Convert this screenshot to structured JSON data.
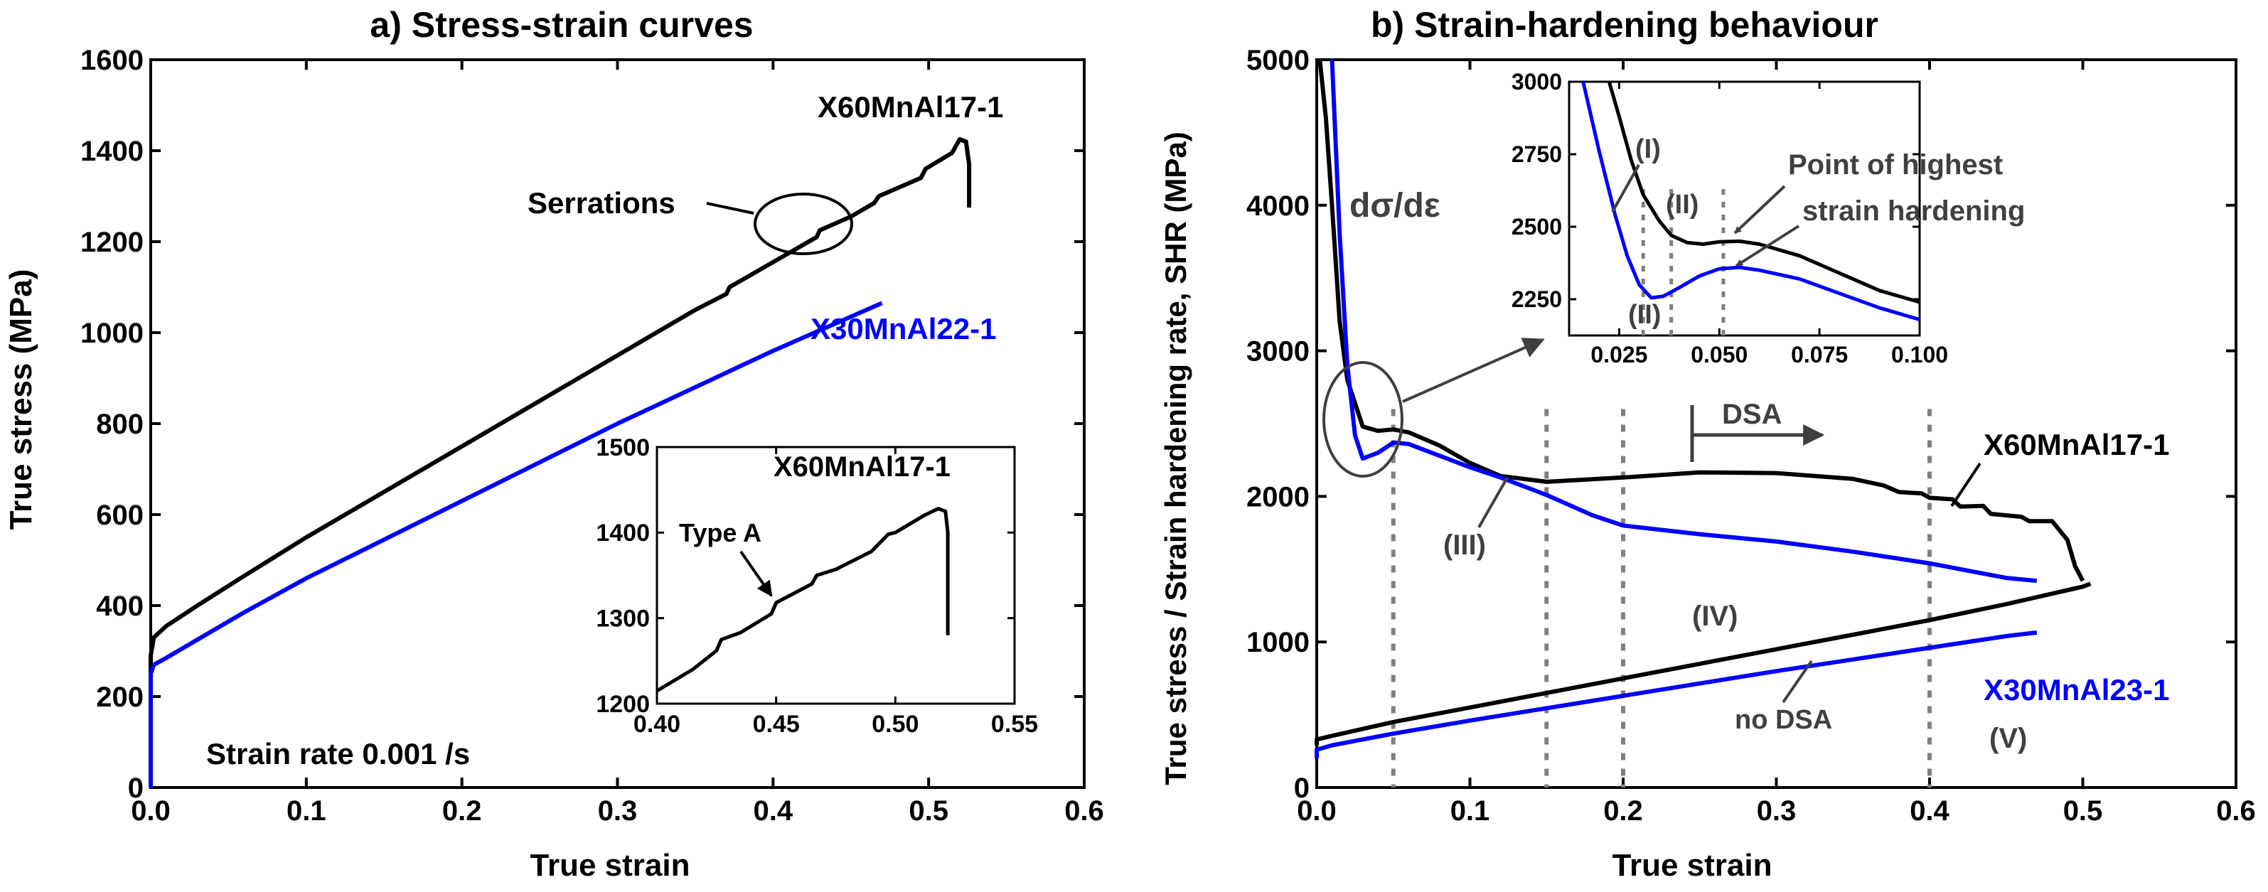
{
  "chart_data": [
    {
      "id": "panel-a",
      "type": "line",
      "title": "a) Stress-strain curves",
      "xlabel": "True strain",
      "ylabel": "True stress (MPa)",
      "xlim": [
        0,
        0.6
      ],
      "ylim": [
        0,
        1600
      ],
      "xticks": [
        0,
        0.1,
        0.2,
        0.3,
        0.4,
        0.5,
        0.6
      ],
      "xtick_labels": [
        "0.0",
        "0.1",
        "0.2",
        "0.3",
        "0.4",
        "0.5",
        "0.6"
      ],
      "yticks": [
        0,
        200,
        400,
        600,
        800,
        1000,
        1200,
        1400,
        1600
      ],
      "ytick_labels": [
        "0",
        "200",
        "400",
        "600",
        "800",
        "1000",
        "1200",
        "1400",
        "1600"
      ],
      "series": [
        {
          "name": "X60MnAl17-1",
          "color": "#000000",
          "points": [
            [
              0,
              0
            ],
            [
              0,
              290
            ],
            [
              0.002,
              330
            ],
            [
              0.01,
              355
            ],
            [
              0.03,
              400
            ],
            [
              0.06,
              465
            ],
            [
              0.1,
              550
            ],
            [
              0.15,
              650
            ],
            [
              0.2,
              750
            ],
            [
              0.25,
              850
            ],
            [
              0.3,
              950
            ],
            [
              0.35,
              1050
            ],
            [
              0.37,
              1085
            ],
            [
              0.372,
              1100
            ],
            [
              0.4,
              1155
            ],
            [
              0.428,
              1210
            ],
            [
              0.43,
              1225
            ],
            [
              0.45,
              1255
            ],
            [
              0.465,
              1285
            ],
            [
              0.468,
              1300
            ],
            [
              0.495,
              1340
            ],
            [
              0.498,
              1360
            ],
            [
              0.515,
              1395
            ],
            [
              0.52,
              1425
            ],
            [
              0.524,
              1420
            ],
            [
              0.526,
              1370
            ],
            [
              0.526,
              1275
            ]
          ]
        },
        {
          "name": "X30MnAl22-1",
          "color": "#0000ff",
          "points": [
            [
              0,
              0
            ],
            [
              0,
              250
            ],
            [
              0.002,
              270
            ],
            [
              0.01,
              285
            ],
            [
              0.03,
              325
            ],
            [
              0.06,
              385
            ],
            [
              0.1,
              460
            ],
            [
              0.15,
              545
            ],
            [
              0.2,
              630
            ],
            [
              0.25,
              715
            ],
            [
              0.3,
              800
            ],
            [
              0.35,
              880
            ],
            [
              0.4,
              960
            ],
            [
              0.45,
              1035
            ],
            [
              0.47,
              1065
            ]
          ]
        }
      ],
      "annotations": [
        {
          "text": "X60MnAl17-1",
          "color": "#000000"
        },
        {
          "text": "Serrations",
          "color": "#000000"
        },
        {
          "text": "X30MnAl22-1",
          "color": "#0000ff"
        },
        {
          "text": "Strain rate 0.001 /s",
          "color": "#000000"
        }
      ],
      "inset": {
        "type": "line",
        "title": "X60MnAl17-1",
        "xlim": [
          0.4,
          0.55
        ],
        "ylim": [
          1200,
          1500
        ],
        "xticks": [
          0.4,
          0.45,
          0.5,
          0.55
        ],
        "xtick_labels": [
          "0.40",
          "0.45",
          "0.50",
          "0.55"
        ],
        "yticks": [
          1200,
          1300,
          1400,
          1500
        ],
        "ytick_labels": [
          "1200",
          "1300",
          "1400",
          "1500"
        ],
        "annotation": "Type A",
        "series": [
          {
            "name": "X60MnAl17-1",
            "color": "#000000",
            "points": [
              [
                0.4,
                1215
              ],
              [
                0.415,
                1240
              ],
              [
                0.425,
                1262
              ],
              [
                0.427,
                1275
              ],
              [
                0.435,
                1283
              ],
              [
                0.448,
                1305
              ],
              [
                0.45,
                1318
              ],
              [
                0.465,
                1340
              ],
              [
                0.467,
                1350
              ],
              [
                0.475,
                1357
              ],
              [
                0.49,
                1378
              ],
              [
                0.497,
                1398
              ],
              [
                0.5,
                1400
              ],
              [
                0.512,
                1420
              ],
              [
                0.518,
                1428
              ],
              [
                0.521,
                1425
              ],
              [
                0.522,
                1400
              ],
              [
                0.522,
                1350
              ],
              [
                0.522,
                1280
              ]
            ]
          }
        ]
      }
    },
    {
      "id": "panel-b",
      "type": "line",
      "title": "b) Strain-hardening behaviour",
      "xlabel": "True strain",
      "ylabel": "True stress / Strain hardening rate, SHR (MPa)",
      "xlim": [
        0,
        0.6
      ],
      "ylim": [
        0,
        5000
      ],
      "xticks": [
        0,
        0.1,
        0.2,
        0.3,
        0.4,
        0.5,
        0.6
      ],
      "xtick_labels": [
        "0.0",
        "0.1",
        "0.2",
        "0.3",
        "0.4",
        "0.5",
        "0.6"
      ],
      "yticks": [
        0,
        1000,
        2000,
        3000,
        4000,
        5000
      ],
      "ytick_labels": [
        "0",
        "1000",
        "2000",
        "3000",
        "4000",
        "5000"
      ],
      "series": [
        {
          "name": "X60MnAl17-1 SHR",
          "color": "#000000",
          "points": [
            [
              0.002,
              5000
            ],
            [
              0.006,
              4600
            ],
            [
              0.01,
              4000
            ],
            [
              0.015,
              3200
            ],
            [
              0.02,
              2800
            ],
            [
              0.03,
              2480
            ],
            [
              0.04,
              2450
            ],
            [
              0.05,
              2460
            ],
            [
              0.06,
              2440
            ],
            [
              0.08,
              2350
            ],
            [
              0.1,
              2230
            ],
            [
              0.12,
              2140
            ],
            [
              0.15,
              2100
            ],
            [
              0.2,
              2130
            ],
            [
              0.25,
              2165
            ],
            [
              0.3,
              2160
            ],
            [
              0.35,
              2120
            ],
            [
              0.37,
              2075
            ],
            [
              0.38,
              2030
            ],
            [
              0.395,
              2020
            ],
            [
              0.4,
              1990
            ],
            [
              0.415,
              1980
            ],
            [
              0.42,
              1930
            ],
            [
              0.435,
              1935
            ],
            [
              0.44,
              1880
            ],
            [
              0.46,
              1860
            ],
            [
              0.465,
              1830
            ],
            [
              0.48,
              1830
            ],
            [
              0.49,
              1700
            ],
            [
              0.495,
              1520
            ],
            [
              0.5,
              1420
            ]
          ]
        },
        {
          "name": "X30MnAl23-1 SHR",
          "color": "#0000ff",
          "points": [
            [
              0.01,
              5000
            ],
            [
              0.015,
              3800
            ],
            [
              0.02,
              2900
            ],
            [
              0.025,
              2420
            ],
            [
              0.03,
              2260
            ],
            [
              0.04,
              2300
            ],
            [
              0.05,
              2370
            ],
            [
              0.06,
              2360
            ],
            [
              0.08,
              2280
            ],
            [
              0.1,
              2200
            ],
            [
              0.12,
              2130
            ],
            [
              0.15,
              2010
            ],
            [
              0.18,
              1870
            ],
            [
              0.2,
              1800
            ],
            [
              0.25,
              1740
            ],
            [
              0.3,
              1690
            ],
            [
              0.35,
              1620
            ],
            [
              0.4,
              1540
            ],
            [
              0.43,
              1480
            ],
            [
              0.45,
              1440
            ],
            [
              0.47,
              1420
            ]
          ]
        },
        {
          "name": "X60MnAl17-1 stress",
          "color": "#000000",
          "points": [
            [
              0,
              290
            ],
            [
              0,
              330
            ],
            [
              0.01,
              355
            ],
            [
              0.05,
              450
            ],
            [
              0.1,
              550
            ],
            [
              0.15,
              650
            ],
            [
              0.2,
              750
            ],
            [
              0.25,
              850
            ],
            [
              0.3,
              950
            ],
            [
              0.35,
              1050
            ],
            [
              0.4,
              1150
            ],
            [
              0.45,
              1260
            ],
            [
              0.5,
              1380
            ],
            [
              0.505,
              1400
            ]
          ]
        },
        {
          "name": "X30MnAl23-1 stress",
          "color": "#0000ff",
          "points": [
            [
              0,
              200
            ],
            [
              0,
              260
            ],
            [
              0.01,
              290
            ],
            [
              0.05,
              370
            ],
            [
              0.1,
              460
            ],
            [
              0.15,
              545
            ],
            [
              0.2,
              630
            ],
            [
              0.25,
              715
            ],
            [
              0.3,
              800
            ],
            [
              0.35,
              880
            ],
            [
              0.4,
              960
            ],
            [
              0.45,
              1040
            ],
            [
              0.47,
              1065
            ]
          ]
        }
      ],
      "vlines": [
        0.05,
        0.15,
        0.2,
        0.4
      ],
      "dsa_marker_x": [
        0.245,
        0.33
      ],
      "annotations": [
        {
          "text": "dσ/dε",
          "color": "#404040"
        },
        {
          "text": "DSA",
          "color": "#404040"
        },
        {
          "text": "X60MnAl17-1",
          "color": "#000000"
        },
        {
          "text": "(III)",
          "color": "#404040"
        },
        {
          "text": "(IV)",
          "color": "#404040"
        },
        {
          "text": "no DSA",
          "color": "#404040"
        },
        {
          "text": "X30MnAl23-1",
          "color": "#0000ff"
        },
        {
          "text": "(V)",
          "color": "#404040"
        }
      ],
      "inset": {
        "type": "line",
        "xlim": [
          0.0125,
          0.1
        ],
        "ylim": [
          2125,
          3000
        ],
        "xticks": [
          0.025,
          0.05,
          0.075,
          0.1
        ],
        "xtick_labels": [
          "0.025",
          "0.050",
          "0.075",
          "0.100"
        ],
        "yticks": [
          2250,
          2500,
          2750,
          3000
        ],
        "ytick_labels": [
          "2250",
          "2500",
          "2750",
          "3000"
        ],
        "vlines": [
          0.031,
          0.038,
          0.051
        ],
        "annotations": {
          "phase1": "(I)",
          "phase2_upper": "(II)",
          "phase2_lower": "(II)",
          "point_line1": "Point of highest",
          "point_line2": "strain hardening"
        },
        "series": [
          {
            "name": "X60MnAl17-1",
            "color": "#000000",
            "points": [
              [
                0.0225,
                3000
              ],
              [
                0.025,
                2880
              ],
              [
                0.028,
                2730
              ],
              [
                0.031,
                2610
              ],
              [
                0.035,
                2520
              ],
              [
                0.038,
                2470
              ],
              [
                0.042,
                2445
              ],
              [
                0.046,
                2440
              ],
              [
                0.05,
                2448
              ],
              [
                0.055,
                2450
              ],
              [
                0.06,
                2440
              ],
              [
                0.07,
                2400
              ],
              [
                0.08,
                2340
              ],
              [
                0.09,
                2280
              ],
              [
                0.1,
                2240
              ]
            ]
          },
          {
            "name": "X30MnAl23-1",
            "color": "#0000ff",
            "points": [
              [
                0.016,
                3000
              ],
              [
                0.02,
                2760
              ],
              [
                0.024,
                2540
              ],
              [
                0.027,
                2400
              ],
              [
                0.03,
                2300
              ],
              [
                0.033,
                2255
              ],
              [
                0.036,
                2260
              ],
              [
                0.04,
                2290
              ],
              [
                0.045,
                2330
              ],
              [
                0.05,
                2355
              ],
              [
                0.055,
                2360
              ],
              [
                0.06,
                2350
              ],
              [
                0.07,
                2320
              ],
              [
                0.08,
                2270
              ],
              [
                0.09,
                2220
              ],
              [
                0.1,
                2180
              ]
            ]
          }
        ]
      }
    }
  ]
}
